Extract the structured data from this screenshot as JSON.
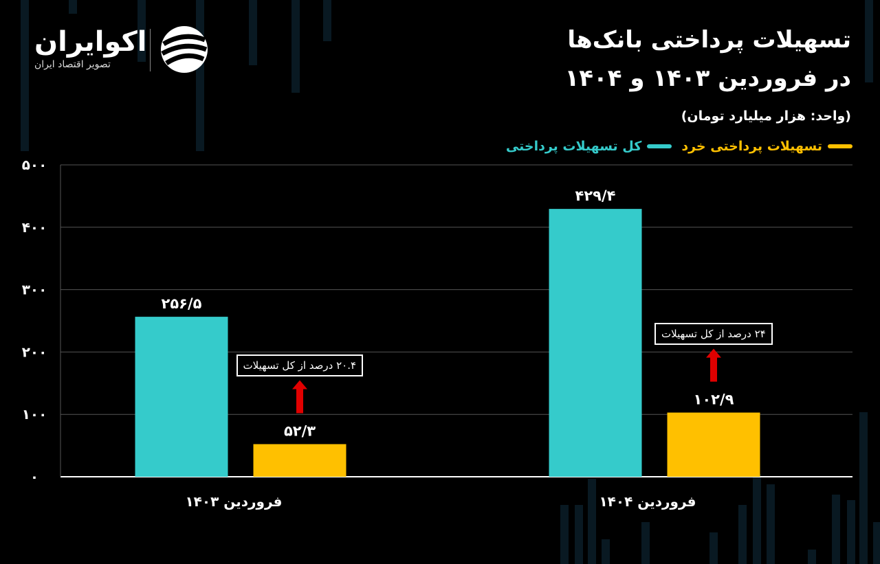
{
  "brand": {
    "name": "اکوایران",
    "tagline": "تصویر اقتصاد ایران"
  },
  "title_line1": "تسهیلات پرداختی بانک‌ها",
  "title_line2": "در فروردین ۱۴۰۳ و ۱۴۰۴",
  "unit": "(واحد: هزار میلیارد تومان)",
  "colors": {
    "total": "#35CBCB",
    "small": "#FFC000",
    "arrow": "#E00000",
    "axis": "#ffffff",
    "grid": "#555555"
  },
  "chart_data": {
    "type": "bar",
    "categories": [
      "فروردین ۱۴۰۳",
      "فروردین ۱۴۰۴"
    ],
    "series": [
      {
        "name": "کل تسهیلات پرداختی",
        "values": [
          256.5,
          429.4
        ],
        "labels": [
          "۲۵۶/۵",
          "۴۲۹/۴"
        ],
        "color": "#35CBCB"
      },
      {
        "name": "تسهیلات پرداختی خرد",
        "values": [
          52.3,
          102.9
        ],
        "labels": [
          "۵۲/۳",
          "۱۰۲/۹"
        ],
        "color": "#FFC000"
      }
    ],
    "yticks": [
      0,
      100,
      200,
      300,
      400,
      500
    ],
    "ytick_labels": [
      "۰",
      "۱۰۰",
      "۲۰۰",
      "۳۰۰",
      "۴۰۰",
      "۵۰۰"
    ],
    "ylim": [
      0,
      500
    ],
    "grid": true,
    "legend_position": "top-right",
    "annotations": [
      "۲۰.۴ درصد از کل تسهیلات",
      "۲۴ درصد از کل تسهیلات"
    ]
  }
}
